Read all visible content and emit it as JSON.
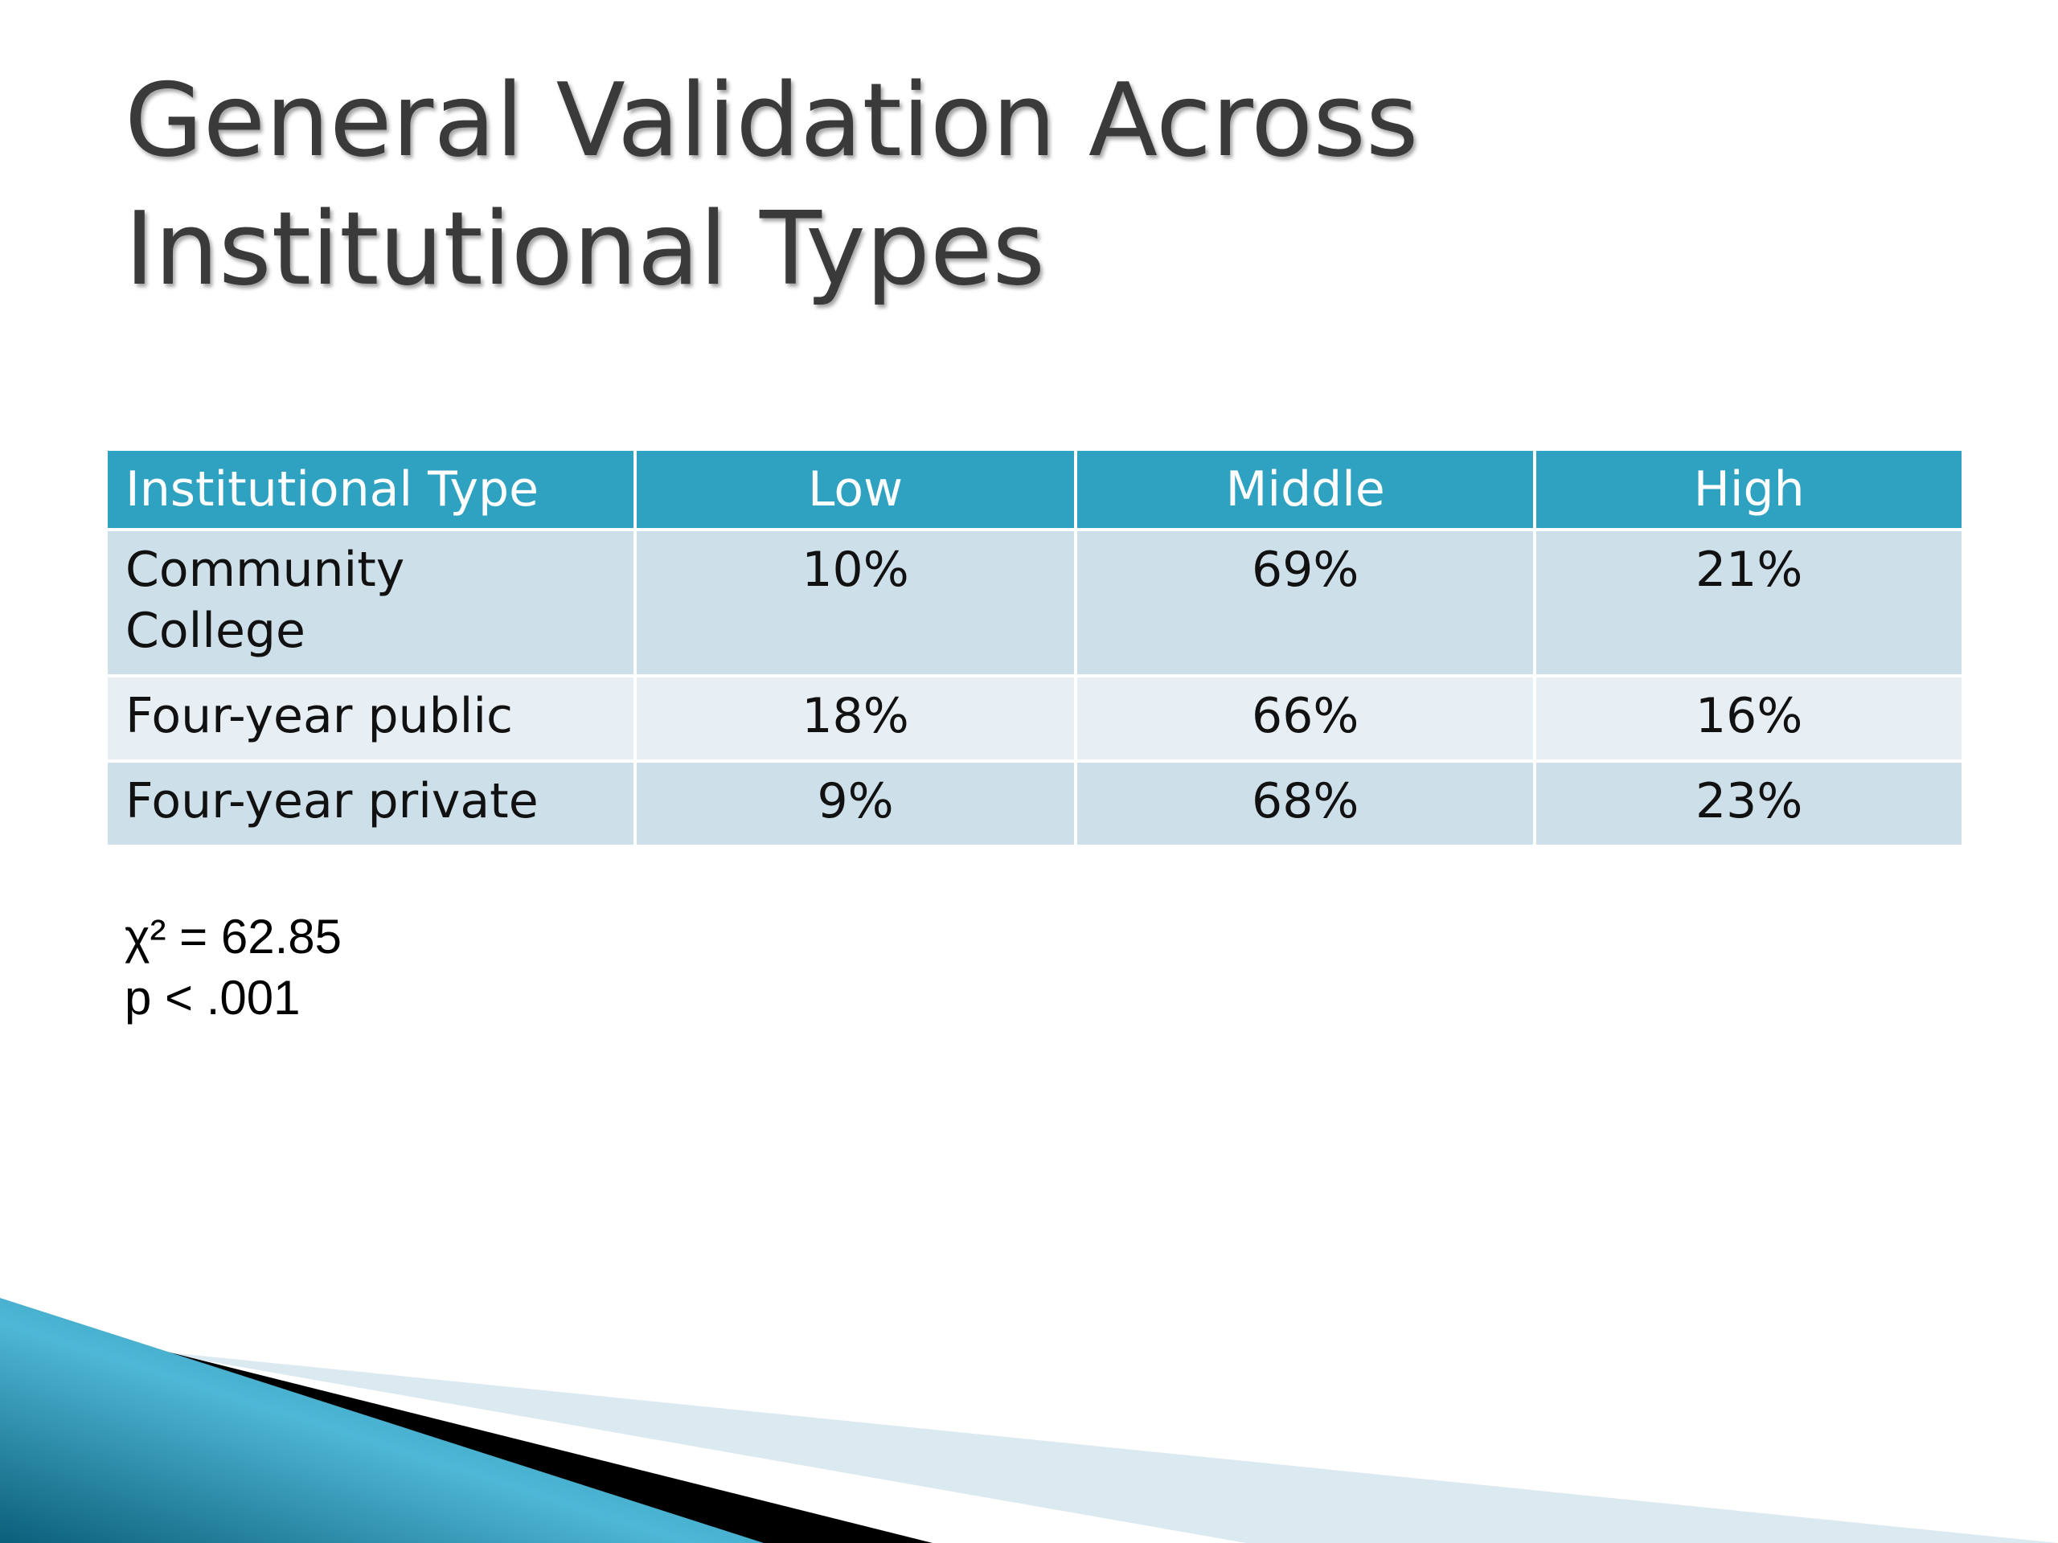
{
  "slide": {
    "title_lines": [
      "General Validation Across",
      "Institutional Types"
    ]
  },
  "table": {
    "headers": [
      "Institutional Type",
      "Low",
      "Middle",
      "High"
    ],
    "rows": [
      {
        "type_lines": [
          "Community",
          "College"
        ],
        "low": "10%",
        "middle": "69%",
        "high": "21%"
      },
      {
        "type": "Four-year public",
        "low": "18%",
        "middle": "66%",
        "high": "16%"
      },
      {
        "type": "Four-year private",
        "low": "9%",
        "middle": "68%",
        "high": "23%"
      }
    ],
    "colors": {
      "header_bg": "#2ea2c0",
      "row_dark": "#cddfe8",
      "row_light": "#e8eff4"
    }
  },
  "stats": {
    "chi_square": "χ² = 62.85",
    "p_value": "p < .001"
  },
  "decoration": {
    "swoosh_colors": [
      "#0b5f7a",
      "#2ea2c0",
      "#000000",
      "#dbe9f0"
    ]
  }
}
